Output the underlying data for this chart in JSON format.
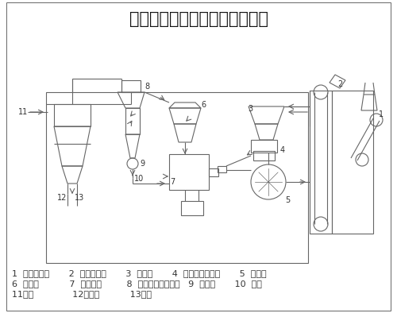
{
  "title": "欧版磨制备石灰石粉工艺流程图",
  "title_fontsize": 15,
  "background_color": "#ffffff",
  "line_color": "#666666",
  "text_color": "#333333",
  "legend_lines": [
    "1  颚式破碎机       2  备斗提升机       3  原料仓       4  电磁振动给料机       5  鼓风机",
    "6  选粉机           7  欧版磨机         8  隔离式旋风集粉器   9  锁风阀       10  成品",
    "11余风              12收尘器           13成品"
  ],
  "legend_fontsize": 8
}
